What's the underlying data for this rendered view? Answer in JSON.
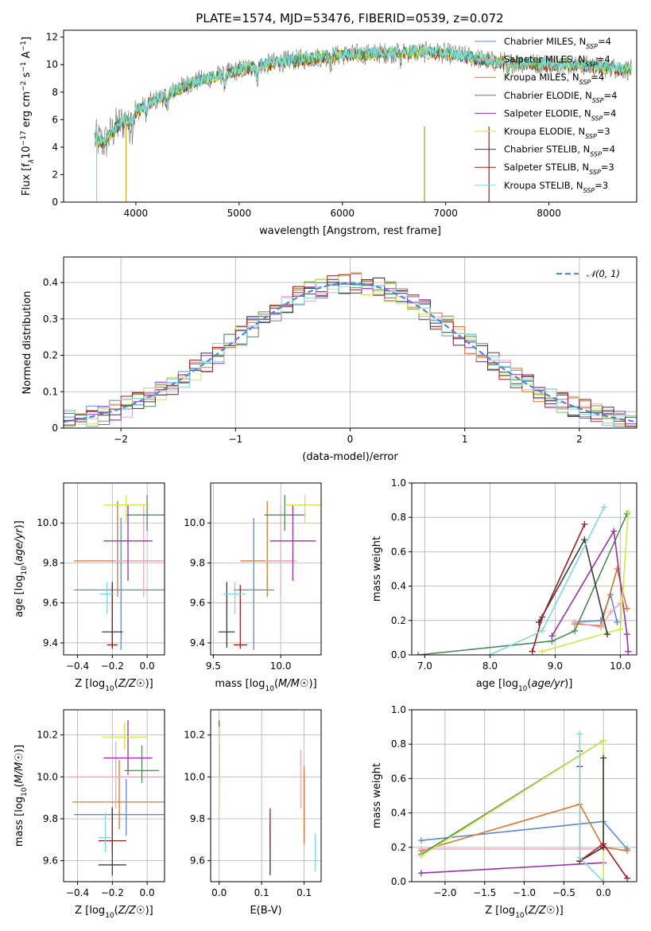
{
  "figure": {
    "title": "PLATE=1574, MJD=53476, FIBERID=0539, z=0.072"
  },
  "colors": {
    "Chabrier MILES": "#5b8ad6",
    "Salpeter MILES": "#f2a7c3",
    "Kroupa MILES": "#d9772b",
    "Chabrier ELODIE": "#4e8a57",
    "Salpeter ELODIE": "#9a2fb0",
    "Kroupa ELODIE": "#cfe84a",
    "Chabrier STELIB": "#3a3a3a",
    "Salpeter STELIB": "#a31a1a",
    "Kroupa STELIB": "#7dd9dc",
    "data": "#808080",
    "gauss": "#4f86d6"
  },
  "chart_data": [
    {
      "id": "spectrum",
      "type": "line",
      "xlabel": "wavelength [Angstrom, rest frame]",
      "ylabel": "Flux [fλ10^-17 erg cm^-2 s^-1 A^-1]",
      "ylabel_parts": {
        "pre": "Flux [f",
        "sub1": "λ",
        "mid": "10",
        "sup1": "−17",
        "mid2": " erg cm",
        "sup2": "−2",
        "mid3": " s",
        "sup3": "−1",
        "mid4": " A",
        "sup4": "−1",
        "post": "]"
      },
      "xlim": [
        3300,
        8850
      ],
      "ylim": [
        0,
        12.5
      ],
      "xticks": [
        4000,
        5000,
        6000,
        7000,
        8000
      ],
      "yticks": [
        0,
        2,
        4,
        6,
        8,
        10,
        12
      ],
      "continuum": [
        [
          3600,
          4.6
        ],
        [
          3700,
          4.3
        ],
        [
          3800,
          5.4
        ],
        [
          3950,
          6.3
        ],
        [
          4100,
          7.1
        ],
        [
          4300,
          7.8
        ],
        [
          4500,
          8.6
        ],
        [
          4700,
          9.0
        ],
        [
          4900,
          9.4
        ],
        [
          5100,
          9.8
        ],
        [
          5400,
          10.2
        ],
        [
          5700,
          10.5
        ],
        [
          6000,
          10.7
        ],
        [
          6300,
          10.8
        ],
        [
          6600,
          10.9
        ],
        [
          6900,
          10.9
        ],
        [
          7200,
          10.6
        ],
        [
          7400,
          10.3
        ],
        [
          7500,
          10.2
        ],
        [
          7800,
          10.1
        ],
        [
          8200,
          10.0
        ],
        [
          8600,
          9.8
        ],
        [
          8800,
          9.6
        ]
      ],
      "legend": [
        {
          "name": "Chabrier MILES",
          "n": "4"
        },
        {
          "name": "Salpeter MILES",
          "n": "4"
        },
        {
          "name": "Kroupa MILES",
          "n": "4"
        },
        {
          "name": "Chabrier ELODIE",
          "n": "4"
        },
        {
          "name": "Salpeter ELODIE",
          "n": "4"
        },
        {
          "name": "Kroupa ELODIE",
          "n": "3"
        },
        {
          "name": "Chabrier STELIB",
          "n": "4"
        },
        {
          "name": "Salpeter STELIB",
          "n": "3"
        },
        {
          "name": "Kroupa STELIB",
          "n": "3"
        }
      ],
      "legend_placement": "right"
    },
    {
      "id": "residuals",
      "type": "histogram",
      "xlabel": "(data-model)/error",
      "ylabel": "Normed distribution",
      "xlim": [
        -2.5,
        2.5
      ],
      "ylim": [
        0,
        0.47
      ],
      "xticks": [
        -2,
        -1,
        0,
        1,
        2
      ],
      "yticks": [
        0.0,
        0.1,
        0.2,
        0.3,
        0.4
      ],
      "legend": "N(0,1)",
      "legend_placement": "top-right",
      "grid": true
    },
    {
      "id": "z-age",
      "type": "scatter",
      "xlabel": "Z [log10(Z/Z☉)]",
      "ylabel": "age  [log10(age/yr)]",
      "xlim": [
        -0.48,
        0.1
      ],
      "ylim": [
        9.34,
        10.2
      ],
      "xticks": [
        -0.4,
        -0.2,
        0.0
      ],
      "yticks": [
        9.4,
        9.6,
        9.8,
        10.0
      ],
      "points": [
        {
          "model": "Chabrier MILES",
          "x": -0.15,
          "y": 9.665,
          "xe": 0.27,
          "ye": [
            0.3,
            0.36
          ]
        },
        {
          "model": "Kroupa MILES",
          "x": -0.17,
          "y": 9.81,
          "xe": 0.25,
          "ye": [
            0.18,
            0.3
          ]
        },
        {
          "model": "Salpeter MILES",
          "x": -0.02,
          "y": 9.81,
          "xe": 0.17,
          "ye": [
            0.18,
            0.28
          ]
        },
        {
          "model": "Chabrier ELODIE",
          "x": 0.0,
          "y": 10.04,
          "xe": 0.12,
          "ye": [
            0.08,
            0.1
          ]
        },
        {
          "model": "Salpeter ELODIE",
          "x": -0.11,
          "y": 9.91,
          "xe": 0.14,
          "ye": [
            0.2,
            0.18
          ]
        },
        {
          "model": "Kroupa ELODIE",
          "x": -0.12,
          "y": 10.09,
          "xe": 0.13,
          "ye": [
            0.09,
            0.05
          ]
        },
        {
          "model": "Chabrier STELIB",
          "x": -0.2,
          "y": 9.455,
          "xe": 0.06,
          "ye": [
            0.08,
            0.25
          ]
        },
        {
          "model": "Salpeter STELIB",
          "x": -0.2,
          "y": 9.39,
          "xe": 0.03,
          "ye": [
            0.02,
            0.3
          ]
        },
        {
          "model": "Kroupa STELIB",
          "x": -0.23,
          "y": 9.645,
          "xe": 0.04,
          "ye": [
            0.1,
            0.06
          ]
        }
      ]
    },
    {
      "id": "mass-age",
      "type": "scatter",
      "xlabel": "mass [log10(M/M☉)]",
      "ylabel": "",
      "xlim": [
        9.48,
        10.3
      ],
      "ylim": [
        9.34,
        10.2
      ],
      "xticks": [
        9.5,
        10.0
      ],
      "yticks": [
        9.4,
        9.6,
        9.8,
        10.0
      ],
      "points": [
        {
          "model": "Chabrier MILES",
          "x": 9.8,
          "y": 9.665,
          "xe": 0.15,
          "ye": [
            0.3,
            0.36
          ]
        },
        {
          "model": "Kroupa MILES",
          "x": 9.9,
          "y": 9.81,
          "xe": 0.2,
          "ye": [
            0.18,
            0.3
          ]
        },
        {
          "model": "Salpeter MILES",
          "x": 10.0,
          "y": 9.81,
          "xe": 0.12,
          "ye": [
            0.18,
            0.28
          ]
        },
        {
          "model": "Chabrier ELODIE",
          "x": 10.03,
          "y": 10.04,
          "xe": 0.15,
          "ye": [
            0.08,
            0.1
          ]
        },
        {
          "model": "Salpeter ELODIE",
          "x": 10.09,
          "y": 9.91,
          "xe": 0.17,
          "ye": [
            0.2,
            0.18
          ]
        },
        {
          "model": "Kroupa ELODIE",
          "x": 10.18,
          "y": 10.09,
          "xe": 0.15,
          "ye": [
            0.09,
            0.05
          ]
        },
        {
          "model": "Chabrier STELIB",
          "x": 9.6,
          "y": 9.455,
          "xe": 0.06,
          "ye": [
            0.08,
            0.25
          ]
        },
        {
          "model": "Salpeter STELIB",
          "x": 9.7,
          "y": 9.39,
          "xe": 0.05,
          "ye": [
            0.02,
            0.3
          ]
        },
        {
          "model": "Kroupa STELIB",
          "x": 9.66,
          "y": 9.645,
          "xe": 0.08,
          "ye": [
            0.1,
            0.06
          ]
        }
      ]
    },
    {
      "id": "age-weight",
      "type": "line",
      "xlabel": "age  [log10(age/yr)]",
      "ylabel": "mass weight",
      "xlim": [
        6.8,
        10.25
      ],
      "ylim": [
        0,
        1.0
      ],
      "xticks": [
        7,
        8,
        9,
        10
      ],
      "yticks": [
        0.0,
        0.2,
        0.4,
        0.6,
        0.8,
        1.0
      ],
      "series": [
        {
          "model": "Chabrier MILES",
          "pts": [
            [
              9.3,
              0.19
            ],
            [
              9.7,
              0.2
            ],
            [
              9.85,
              0.35
            ],
            [
              9.95,
              0.19
            ]
          ]
        },
        {
          "model": "Kroupa MILES",
          "pts": [
            [
              9.3,
              0.18
            ],
            [
              9.7,
              0.17
            ],
            [
              9.95,
              0.5
            ],
            [
              10.1,
              0.27
            ]
          ]
        },
        {
          "model": "Salpeter MILES",
          "pts": [
            [
              9.3,
              0.19
            ],
            [
              9.7,
              0.16
            ],
            [
              9.85,
              0.25
            ],
            [
              10.0,
              0.3
            ]
          ]
        },
        {
          "model": "Chabrier ELODIE",
          "pts": [
            [
              6.9,
              0.0
            ],
            [
              8.95,
              0.08
            ],
            [
              9.3,
              0.14
            ],
            [
              10.1,
              0.82
            ]
          ]
        },
        {
          "model": "Salpeter ELODIE",
          "pts": [
            [
              8.95,
              0.11
            ],
            [
              9.9,
              0.72
            ],
            [
              10.1,
              0.12
            ],
            [
              10.12,
              0.02
            ]
          ]
        },
        {
          "model": "Kroupa ELODIE",
          "pts": [
            [
              8.8,
              0.02
            ],
            [
              10.0,
              0.15
            ],
            [
              10.12,
              0.83
            ]
          ]
        },
        {
          "model": "Chabrier STELIB",
          "pts": [
            [
              8.75,
              0.19
            ],
            [
              9.45,
              0.67
            ],
            [
              9.8,
              0.12
            ]
          ]
        },
        {
          "model": "Salpeter STELIB",
          "pts": [
            [
              8.65,
              0.02
            ],
            [
              8.8,
              0.22
            ],
            [
              9.45,
              0.76
            ]
          ]
        },
        {
          "model": "Kroupa STELIB",
          "pts": [
            [
              8.0,
              0.0
            ],
            [
              8.8,
              0.14
            ],
            [
              9.75,
              0.86
            ]
          ]
        }
      ]
    },
    {
      "id": "z-mass",
      "type": "scatter",
      "xlabel": "Z [log10(Z/Z☉)]",
      "ylabel": "mass [log10(M/M☉)]",
      "xlim": [
        -0.48,
        0.1
      ],
      "ylim": [
        9.5,
        10.32
      ],
      "xticks": [
        -0.4,
        -0.2,
        0.0
      ],
      "yticks": [
        9.6,
        9.8,
        10.0,
        10.2
      ],
      "points": [
        {
          "model": "Chabrier MILES",
          "x": -0.12,
          "y": 9.82,
          "xe": 0.3,
          "ye": [
            0.1,
            0.17
          ]
        },
        {
          "model": "Kroupa MILES",
          "x": -0.16,
          "y": 9.88,
          "xe": 0.27,
          "ye": [
            0.13,
            0.2
          ]
        },
        {
          "model": "Salpeter MILES",
          "x": -0.18,
          "y": 10.0,
          "xe": 0.27,
          "ye": [
            0.15,
            0.17
          ]
        },
        {
          "model": "Chabrier ELODIE",
          "x": -0.03,
          "y": 10.03,
          "xe": 0.1,
          "ye": [
            0.06,
            0.12
          ]
        },
        {
          "model": "Salpeter ELODIE",
          "x": -0.11,
          "y": 10.09,
          "xe": 0.14,
          "ye": [
            0.08,
            0.18
          ]
        },
        {
          "model": "Kroupa ELODIE",
          "x": -0.13,
          "y": 10.19,
          "xe": 0.13,
          "ye": [
            0.06,
            0.07
          ]
        },
        {
          "model": "Chabrier STELIB",
          "x": -0.2,
          "y": 9.58,
          "xe": 0.08,
          "ye": [
            0.05,
            0.27
          ]
        },
        {
          "model": "Salpeter STELIB",
          "x": -0.2,
          "y": 9.695,
          "xe": 0.08,
          "ye": [
            0.05,
            0.16
          ]
        },
        {
          "model": "Kroupa STELIB",
          "x": -0.24,
          "y": 9.71,
          "xe": 0.04,
          "ye": [
            0.07,
            0.12
          ]
        }
      ]
    },
    {
      "id": "ebv-mass",
      "type": "scatter",
      "xlabel": "E(B-V)",
      "ylabel": "",
      "xlim": [
        -0.01,
        0.12
      ],
      "ylim": [
        9.5,
        10.32
      ],
      "xticks": [
        0.0,
        0.05,
        0.1
      ],
      "yticks": [
        9.6,
        9.8,
        10.0,
        10.2
      ],
      "points": [
        {
          "model": "Chabrier MILES",
          "x": 0.1,
          "y": 9.82,
          "ye": [
            0.1,
            0.17
          ]
        },
        {
          "model": "Kroupa MILES",
          "x": 0.1,
          "y": 9.88,
          "ye": [
            0.2,
            0.17
          ]
        },
        {
          "model": "Salpeter MILES",
          "x": 0.096,
          "y": 10.0,
          "ye": [
            0.15,
            0.13
          ]
        },
        {
          "model": "Chabrier ELODIE",
          "x": 0.0,
          "y": 10.03,
          "ye": [
            0.06,
            0.12
          ]
        },
        {
          "model": "Salpeter ELODIE",
          "x": 0.0,
          "y": 10.09,
          "ye": [
            0.08,
            0.18
          ]
        },
        {
          "model": "Kroupa ELODIE",
          "x": 0.0,
          "y": 10.19,
          "ye": [
            0.34,
            0.05
          ]
        },
        {
          "model": "Chabrier STELIB",
          "x": 0.06,
          "y": 9.62,
          "ye": [
            0.09,
            0.15
          ]
        },
        {
          "model": "Salpeter STELIB",
          "x": 0.06,
          "y": 9.74,
          "ye": [
            0.07,
            0.11
          ]
        },
        {
          "model": "Kroupa STELIB",
          "x": 0.113,
          "y": 9.64,
          "ye": [
            0.09,
            0.09
          ]
        }
      ]
    },
    {
      "id": "z-weight",
      "type": "line",
      "xlabel": "Z [log10(Z/Z☉)]",
      "ylabel": "mass weight",
      "xlim": [
        -2.42,
        0.42
      ],
      "ylim": [
        0,
        1.0
      ],
      "xticks": [
        -2.0,
        -1.5,
        -1.0,
        -0.5,
        0.0
      ],
      "yticks": [
        0.0,
        0.2,
        0.4,
        0.6,
        0.8,
        1.0
      ],
      "series": [
        {
          "model": "Chabrier MILES",
          "pts": [
            [
              -2.3,
              0.24
            ],
            [
              0.0,
              0.35
            ],
            [
              0.3,
              0.19
            ]
          ]
        },
        {
          "model": "Kroupa MILES",
          "pts": [
            [
              -2.3,
              0.18
            ],
            [
              -0.3,
              0.45
            ],
            [
              0.0,
              0.2
            ],
            [
              0.3,
              0.18
            ]
          ]
        },
        {
          "model": "Salpeter MILES",
          "pts": [
            [
              -2.3,
              0.19
            ],
            [
              0.0,
              0.19
            ]
          ]
        },
        {
          "model": "Chabrier ELODIE",
          "pts": [
            [
              -2.3,
              0.16
            ],
            [
              0.0,
              0.82
            ]
          ]
        },
        {
          "model": "Salpeter ELODIE",
          "pts": [
            [
              -2.3,
              0.05
            ],
            [
              0.0,
              0.11
            ]
          ]
        },
        {
          "model": "Kroupa ELODIE",
          "pts": [
            [
              -2.3,
              0.15
            ],
            [
              0.0,
              0.82
            ],
            [
              0.0,
              0.0
            ]
          ]
        },
        {
          "model": "Chabrier STELIB",
          "pts": [
            [
              -0.3,
              0.67
            ],
            [
              -0.3,
              0.12
            ],
            [
              0.0,
              0.2
            ],
            [
              0.0,
              0.72
            ]
          ]
        },
        {
          "model": "Salpeter STELIB",
          "pts": [
            [
              -0.3,
              0.76
            ],
            [
              -0.3,
              0.12
            ],
            [
              0.0,
              0.22
            ],
            [
              0.3,
              0.02
            ]
          ]
        },
        {
          "model": "Kroupa STELIB",
          "pts": [
            [
              -0.3,
              0.86
            ],
            [
              -0.3,
              0.14
            ],
            [
              0.0,
              0.0
            ]
          ]
        }
      ]
    }
  ]
}
